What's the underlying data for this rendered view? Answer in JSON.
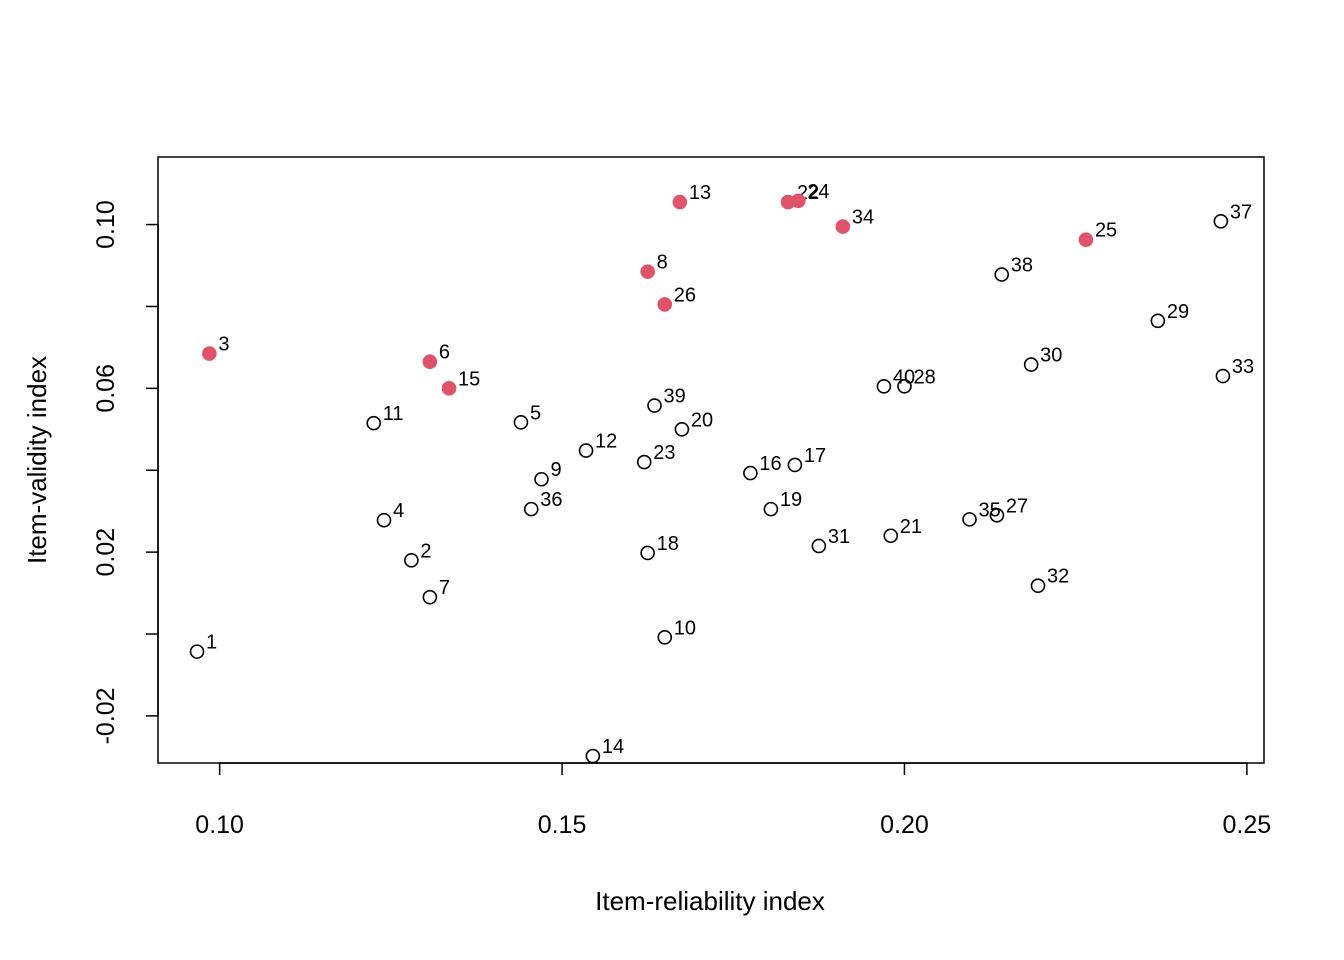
{
  "chart_data": {
    "type": "scatter",
    "xlabel": "Item-reliability index",
    "ylabel": "Item-validity index",
    "xlim": [
      0.091,
      0.2525
    ],
    "ylim": [
      -0.0315,
      0.1165
    ],
    "x_ticks": [
      0.1,
      0.15,
      0.2,
      0.25
    ],
    "x_tick_labels": [
      "0.10",
      "0.15",
      "0.20",
      "0.25"
    ],
    "y_ticks": [
      -0.02,
      0.0,
      0.02,
      0.04,
      0.06,
      0.08,
      0.1
    ],
    "y_tick_labels": [
      "-0.02",
      "",
      "0.02",
      "",
      "0.06",
      "",
      "0.10"
    ],
    "grid": false,
    "highlight_color": "#DF536B",
    "points": [
      {
        "label": "1",
        "x": 0.0967,
        "y": -0.0043,
        "highlight": false
      },
      {
        "label": "2",
        "x": 0.128,
        "y": 0.018,
        "highlight": false
      },
      {
        "label": "3",
        "x": 0.0985,
        "y": 0.0685,
        "highlight": true
      },
      {
        "label": "4",
        "x": 0.124,
        "y": 0.0278,
        "highlight": false
      },
      {
        "label": "5",
        "x": 0.144,
        "y": 0.0517,
        "highlight": false
      },
      {
        "label": "6",
        "x": 0.1307,
        "y": 0.0665,
        "highlight": true
      },
      {
        "label": "7",
        "x": 0.1307,
        "y": 0.009,
        "highlight": false
      },
      {
        "label": "8",
        "x": 0.1625,
        "y": 0.0885,
        "highlight": true
      },
      {
        "label": "9",
        "x": 0.147,
        "y": 0.0378,
        "highlight": false
      },
      {
        "label": "10",
        "x": 0.165,
        "y": -0.0008,
        "highlight": false
      },
      {
        "label": "11",
        "x": 0.1225,
        "y": 0.0515,
        "highlight": false
      },
      {
        "label": "12",
        "x": 0.1535,
        "y": 0.0448,
        "highlight": false
      },
      {
        "label": "13",
        "x": 0.1672,
        "y": 0.1055,
        "highlight": true
      },
      {
        "label": "14",
        "x": 0.1545,
        "y": -0.0298,
        "highlight": false
      },
      {
        "label": "15",
        "x": 0.1335,
        "y": 0.06,
        "highlight": true
      },
      {
        "label": "16",
        "x": 0.1775,
        "y": 0.0393,
        "highlight": false
      },
      {
        "label": "17",
        "x": 0.184,
        "y": 0.0413,
        "highlight": false
      },
      {
        "label": "18",
        "x": 0.1625,
        "y": 0.0198,
        "highlight": false
      },
      {
        "label": "19",
        "x": 0.1805,
        "y": 0.0305,
        "highlight": false
      },
      {
        "label": "20",
        "x": 0.1675,
        "y": 0.05,
        "highlight": false
      },
      {
        "label": "21",
        "x": 0.198,
        "y": 0.024,
        "highlight": false
      },
      {
        "label": "22",
        "x": 0.183,
        "y": 0.1055,
        "highlight": true
      },
      {
        "label": "23",
        "x": 0.162,
        "y": 0.042,
        "highlight": false
      },
      {
        "label": "24",
        "x": 0.1845,
        "y": 0.1058,
        "highlight": true
      },
      {
        "label": "25",
        "x": 0.2265,
        "y": 0.0963,
        "highlight": true
      },
      {
        "label": "26",
        "x": 0.165,
        "y": 0.0805,
        "highlight": true
      },
      {
        "label": "27",
        "x": 0.2135,
        "y": 0.029,
        "highlight": false
      },
      {
        "label": "28",
        "x": 0.2,
        "y": 0.0605,
        "highlight": false
      },
      {
        "label": "29",
        "x": 0.237,
        "y": 0.0765,
        "highlight": false
      },
      {
        "label": "30",
        "x": 0.2185,
        "y": 0.0658,
        "highlight": false
      },
      {
        "label": "31",
        "x": 0.1875,
        "y": 0.0215,
        "highlight": false
      },
      {
        "label": "32",
        "x": 0.2195,
        "y": 0.0118,
        "highlight": false
      },
      {
        "label": "33",
        "x": 0.2465,
        "y": 0.063,
        "highlight": false
      },
      {
        "label": "34",
        "x": 0.191,
        "y": 0.0995,
        "highlight": true
      },
      {
        "label": "35",
        "x": 0.2095,
        "y": 0.028,
        "highlight": false
      },
      {
        "label": "36",
        "x": 0.1455,
        "y": 0.0305,
        "highlight": false
      },
      {
        "label": "37",
        "x": 0.2462,
        "y": 0.1008,
        "highlight": false
      },
      {
        "label": "38",
        "x": 0.2142,
        "y": 0.0878,
        "highlight": false
      },
      {
        "label": "39",
        "x": 0.1635,
        "y": 0.0558,
        "highlight": false
      },
      {
        "label": "40",
        "x": 0.197,
        "y": 0.0605,
        "highlight": false
      }
    ]
  }
}
